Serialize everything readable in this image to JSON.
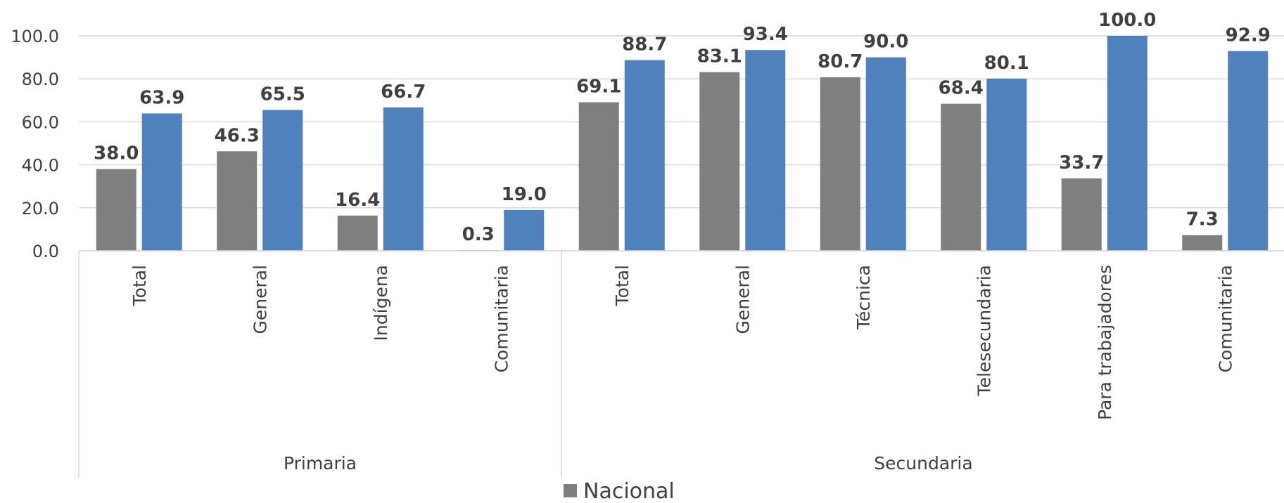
{
  "chart_data": {
    "type": "bar",
    "title": "",
    "xlabel": "",
    "ylabel": "",
    "ylim": [
      0,
      100
    ],
    "yticks": [
      "0.0",
      "20.0",
      "40.0",
      "60.0",
      "80.0",
      "100.0"
    ],
    "ytick_values": [
      0,
      20,
      40,
      60,
      80,
      100
    ],
    "grid": true,
    "legend_position": "bottom",
    "groups": [
      {
        "name": "Primaria",
        "categories": [
          "Total",
          "General",
          "Indígena",
          "Comunitaria"
        ]
      },
      {
        "name": "Secundaria",
        "categories": [
          "Total",
          "General",
          "Técnica",
          "Telesecundaria",
          "Para trabajadores",
          "Comunitaria"
        ]
      }
    ],
    "categories": [
      "Total",
      "General",
      "Indígena",
      "Comunitaria",
      "Total",
      "General",
      "Técnica",
      "Telesecundaria",
      "Para trabajadores",
      "Comunitaria"
    ],
    "series": [
      {
        "name": "Nacional",
        "color": "#7f7f7f",
        "values": [
          38.0,
          46.3,
          16.4,
          0.3,
          69.1,
          83.1,
          80.7,
          68.4,
          33.7,
          7.3
        ],
        "labels": [
          "38.0",
          "46.3",
          "16.4",
          "0.3",
          "69.1",
          "83.1",
          "80.7",
          "68.4",
          "33.7",
          "7.3"
        ]
      },
      {
        "color": "#4f81bd",
        "values": [
          63.9,
          65.5,
          66.7,
          19.0,
          88.7,
          93.4,
          90.0,
          80.1,
          100.0,
          92.9
        ],
        "labels": [
          "63.9",
          "65.5",
          "66.7",
          "19.0",
          "88.7",
          "93.4",
          "90.0",
          "80.1",
          "100.0",
          "92.9"
        ]
      }
    ]
  }
}
